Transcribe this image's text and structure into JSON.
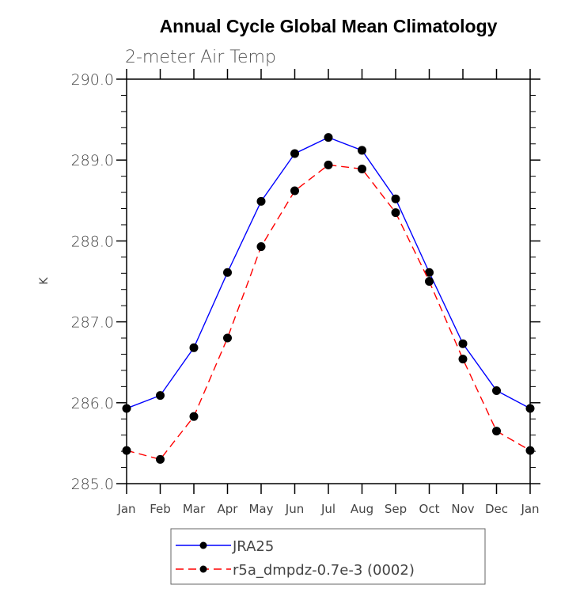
{
  "chart_data": {
    "type": "line",
    "title": "Annual Cycle Global Mean Climatology",
    "subtitle": "2-meter Air Temp",
    "xlabel": "",
    "ylabel": "K",
    "categories": [
      "Jan",
      "Feb",
      "Mar",
      "Apr",
      "May",
      "Jun",
      "Jul",
      "Aug",
      "Sep",
      "Oct",
      "Nov",
      "Dec",
      "Jan"
    ],
    "ylim": [
      285.0,
      290.0
    ],
    "yticks": [
      285.0,
      286.0,
      287.0,
      288.0,
      289.0,
      290.0
    ],
    "ytick_labels": [
      "285.0",
      "286.0",
      "287.0",
      "288.0",
      "289.0",
      "290.0"
    ],
    "y_minor_step": 0.2,
    "grid": false,
    "legend_position": "bottom-center",
    "series": [
      {
        "name": "JRA25",
        "color": "#0000ff",
        "dash": "solid",
        "marker": "filled-circle",
        "values": [
          285.93,
          286.09,
          286.68,
          287.61,
          288.49,
          289.08,
          289.28,
          289.12,
          288.52,
          287.61,
          286.73,
          286.15,
          285.93
        ]
      },
      {
        "name": "r5a_dmpdz-0.7e-3 (0002)",
        "color": "#ff0000",
        "dash": "dashed",
        "marker": "filled-circle",
        "values": [
          285.41,
          285.3,
          285.83,
          286.8,
          287.93,
          288.62,
          288.94,
          288.89,
          288.35,
          287.5,
          286.54,
          285.65,
          285.41
        ]
      }
    ]
  }
}
